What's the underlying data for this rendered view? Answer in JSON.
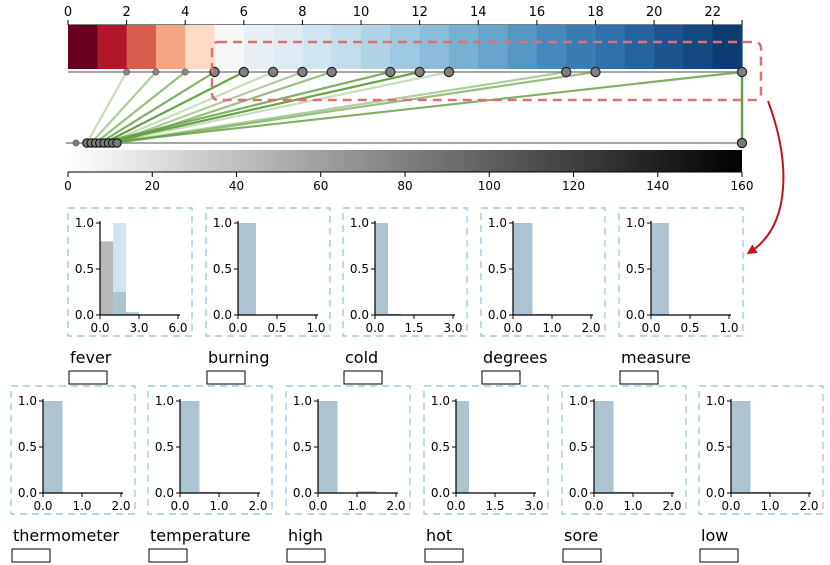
{
  "top_axis": {
    "ticks": [
      "0",
      "2",
      "4",
      "6",
      "8",
      "10",
      "12",
      "14",
      "16",
      "18",
      "20",
      "22"
    ],
    "min": 0,
    "max": 23,
    "colormap": [
      "#67001f",
      "#b2182b",
      "#d6604d",
      "#f4a582",
      "#fddbc7",
      "#f7f7f7",
      "#e9f0f5",
      "#deebf3",
      "#d1e5f0",
      "#c2ddec",
      "#b0d3e6",
      "#9ec8e1",
      "#8bbcdb",
      "#78b0d4",
      "#67a3cd",
      "#5696c5",
      "#4689bd",
      "#3a7db5",
      "#2f70ab",
      "#25629e",
      "#1c5590",
      "#144881",
      "#0c3c72"
    ]
  },
  "bottom_axis": {
    "ticks": [
      "0",
      "20",
      "40",
      "60",
      "80",
      "100",
      "120",
      "140",
      "160"
    ],
    "min": 0,
    "max": 160
  },
  "mapping": {
    "top_points": [
      2,
      3,
      4,
      5,
      6,
      7,
      8,
      9,
      11,
      12,
      13,
      17,
      18,
      23
    ],
    "filled_top_points": [
      5,
      6,
      7,
      8,
      9,
      11,
      12,
      13,
      17,
      18,
      23
    ],
    "bottom_points": [
      0,
      3,
      4,
      5,
      6,
      7,
      8,
      9,
      10,
      160
    ],
    "links": [
      [
        2,
        3
      ],
      [
        3,
        4
      ],
      [
        4,
        5
      ],
      [
        5,
        6
      ],
      [
        6,
        7
      ],
      [
        7,
        8
      ],
      [
        8,
        9
      ],
      [
        9,
        10
      ],
      [
        11,
        6
      ],
      [
        12,
        7
      ],
      [
        13,
        8
      ],
      [
        17,
        9
      ],
      [
        18,
        10
      ],
      [
        23,
        7
      ],
      [
        23,
        160
      ]
    ]
  },
  "colors": {
    "highlight_box": "#e07070",
    "arrow": "#c0141c",
    "link": "#5e9e3c",
    "hist_bar": "#aec3d0",
    "hist_gray": "#b5b5b5",
    "hist_light": "#cfe2ee",
    "card_border": "#9ecae1"
  },
  "histograms_row1": [
    {
      "term": "fever",
      "xticks": [
        "0.0",
        "3.0",
        "6.0"
      ],
      "yticks": [
        "0.0",
        "0.5",
        "1.0"
      ],
      "bars": [
        {
          "x": 0,
          "w": 1.0,
          "h": 0.8,
          "style": "gray"
        },
        {
          "x": 1.0,
          "w": 1.0,
          "h": 1.0,
          "style": "light"
        },
        {
          "x": 1.0,
          "w": 1.0,
          "h": 0.25,
          "style": "main"
        },
        {
          "x": 2.0,
          "w": 1.0,
          "h": 0.03,
          "style": "main"
        }
      ]
    },
    {
      "term": "burning",
      "xticks": [
        "0.0",
        "0.5",
        "1.0"
      ],
      "yticks": [
        "0.0",
        "0.5",
        "1.0"
      ],
      "bars": [
        {
          "x": 0,
          "w": 0.23,
          "h": 1.0,
          "style": "main"
        }
      ]
    },
    {
      "term": "cold",
      "xticks": [
        "0.0",
        "1.5",
        "3.0"
      ],
      "yticks": [
        "0.0",
        "0.5",
        "1.0"
      ],
      "bars": [
        {
          "x": 0,
          "w": 0.5,
          "h": 1.0,
          "style": "main"
        },
        {
          "x": 0.5,
          "w": 0.5,
          "h": 0.01,
          "style": "main"
        }
      ]
    },
    {
      "term": "degrees",
      "xticks": [
        "0.0",
        "1.0",
        "2.0"
      ],
      "yticks": [
        "0.0",
        "0.5",
        "1.0"
      ],
      "bars": [
        {
          "x": 0,
          "w": 0.5,
          "h": 1.0,
          "style": "main"
        },
        {
          "x": 0.5,
          "w": 0.5,
          "h": 0.01,
          "style": "main"
        }
      ]
    },
    {
      "term": "measure",
      "xticks": [
        "0.0",
        "0.5",
        "1.0"
      ],
      "yticks": [
        "0.0",
        "0.5",
        "1.0"
      ],
      "bars": [
        {
          "x": 0,
          "w": 0.23,
          "h": 1.0,
          "style": "main"
        }
      ]
    }
  ],
  "histograms_row2": [
    {
      "term": "thermometer",
      "xticks": [
        "0.0",
        "1.0",
        "2.0"
      ],
      "yticks": [
        "0.0",
        "0.5",
        "1.0"
      ],
      "bars": [
        {
          "x": 0,
          "w": 0.5,
          "h": 1.0,
          "style": "main"
        }
      ]
    },
    {
      "term": "temperature",
      "xticks": [
        "0.0",
        "1.0",
        "2.0"
      ],
      "yticks": [
        "0.0",
        "0.5",
        "1.0"
      ],
      "bars": [
        {
          "x": 0,
          "w": 0.5,
          "h": 1.0,
          "style": "main"
        },
        {
          "x": 0.5,
          "w": 0.5,
          "h": 0.01,
          "style": "main"
        }
      ]
    },
    {
      "term": "high",
      "xticks": [
        "0.0",
        "1.0",
        "2.0"
      ],
      "yticks": [
        "0.0",
        "0.5",
        "1.0"
      ],
      "bars": [
        {
          "x": 0,
          "w": 0.5,
          "h": 1.0,
          "style": "main"
        },
        {
          "x": 1.0,
          "w": 0.5,
          "h": 0.02,
          "style": "main"
        }
      ]
    },
    {
      "term": "hot",
      "xticks": [
        "0.0",
        "1.5",
        "3.0"
      ],
      "yticks": [
        "0.0",
        "0.5",
        "1.0"
      ],
      "bars": [
        {
          "x": 0,
          "w": 0.5,
          "h": 1.0,
          "style": "main"
        }
      ]
    },
    {
      "term": "sore",
      "xticks": [
        "0.0",
        "1.0",
        "2.0"
      ],
      "yticks": [
        "0.0",
        "0.5",
        "1.0"
      ],
      "bars": [
        {
          "x": 0,
          "w": 0.5,
          "h": 1.0,
          "style": "main"
        },
        {
          "x": 0.5,
          "w": 0.5,
          "h": 0.01,
          "style": "main"
        }
      ]
    },
    {
      "term": "low",
      "xticks": [
        "0.0",
        "1.0",
        "2.0"
      ],
      "yticks": [
        "0.0",
        "0.5",
        "1.0"
      ],
      "bars": [
        {
          "x": 0,
          "w": 0.5,
          "h": 1.0,
          "style": "main"
        },
        {
          "x": 0.5,
          "w": 0.5,
          "h": 0.01,
          "style": "main"
        }
      ]
    }
  ]
}
